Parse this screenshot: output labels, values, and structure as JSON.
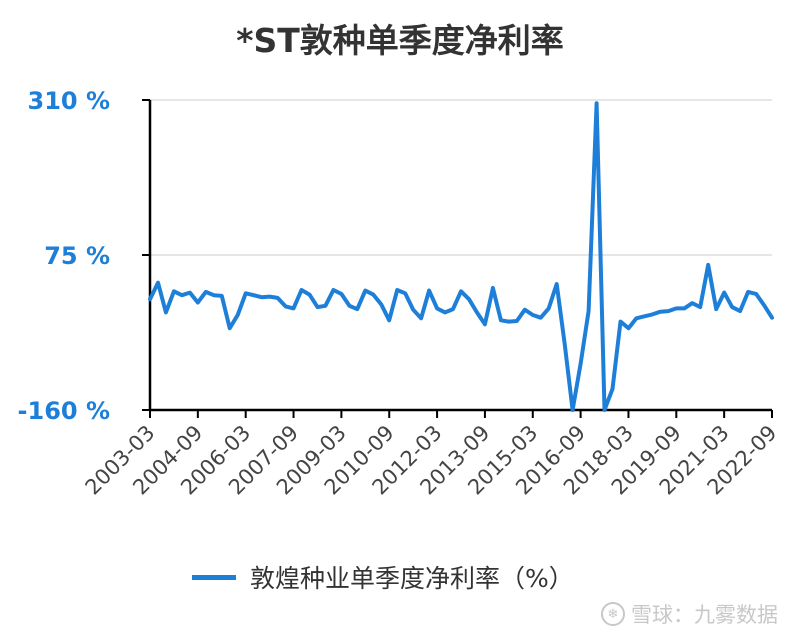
{
  "chart_data": {
    "type": "line",
    "title": "*ST敦种单季度净利率",
    "yticks": [
      {
        "value": 310,
        "label": "310 %"
      },
      {
        "value": 75,
        "label": "75 %"
      },
      {
        "value": -160,
        "label": "-160 %"
      }
    ],
    "ylim": [
      -160,
      310
    ],
    "x_tick_labels": [
      "2003-03",
      "2004-09",
      "2006-03",
      "2007-09",
      "2009-03",
      "2010-09",
      "2012-03",
      "2013-09",
      "2015-03",
      "2016-09",
      "2018-03",
      "2019-09",
      "2021-03",
      "2022-09"
    ],
    "series": [
      {
        "name": "敦煌种业单季度净利率（%）",
        "color": "#1e7fd8",
        "values": [
          8,
          33,
          -12,
          20,
          14,
          18,
          3,
          19,
          14,
          13,
          -36,
          -16,
          17,
          14,
          11,
          12,
          10,
          -3,
          -6,
          22,
          15,
          -4,
          -2,
          22,
          16,
          -2,
          -7,
          21,
          15,
          0,
          -24,
          22,
          17,
          -8,
          -21,
          21,
          -6,
          -12,
          -7,
          20,
          8,
          -12,
          -30,
          25,
          -24,
          -26,
          -25,
          -8,
          -16,
          -20,
          -6,
          31,
          -60,
          -160,
          -90,
          -10,
          305,
          -160,
          -128,
          -26,
          -36,
          -21,
          -18,
          -15,
          -11,
          -10,
          -6,
          -6,
          2,
          -4,
          60,
          -7,
          18,
          -4,
          -10,
          19,
          16,
          -1,
          -20
        ]
      }
    ],
    "legend": "bottom"
  },
  "watermark": {
    "icon": "snowball-icon",
    "text": "雪球：九雾数据"
  }
}
